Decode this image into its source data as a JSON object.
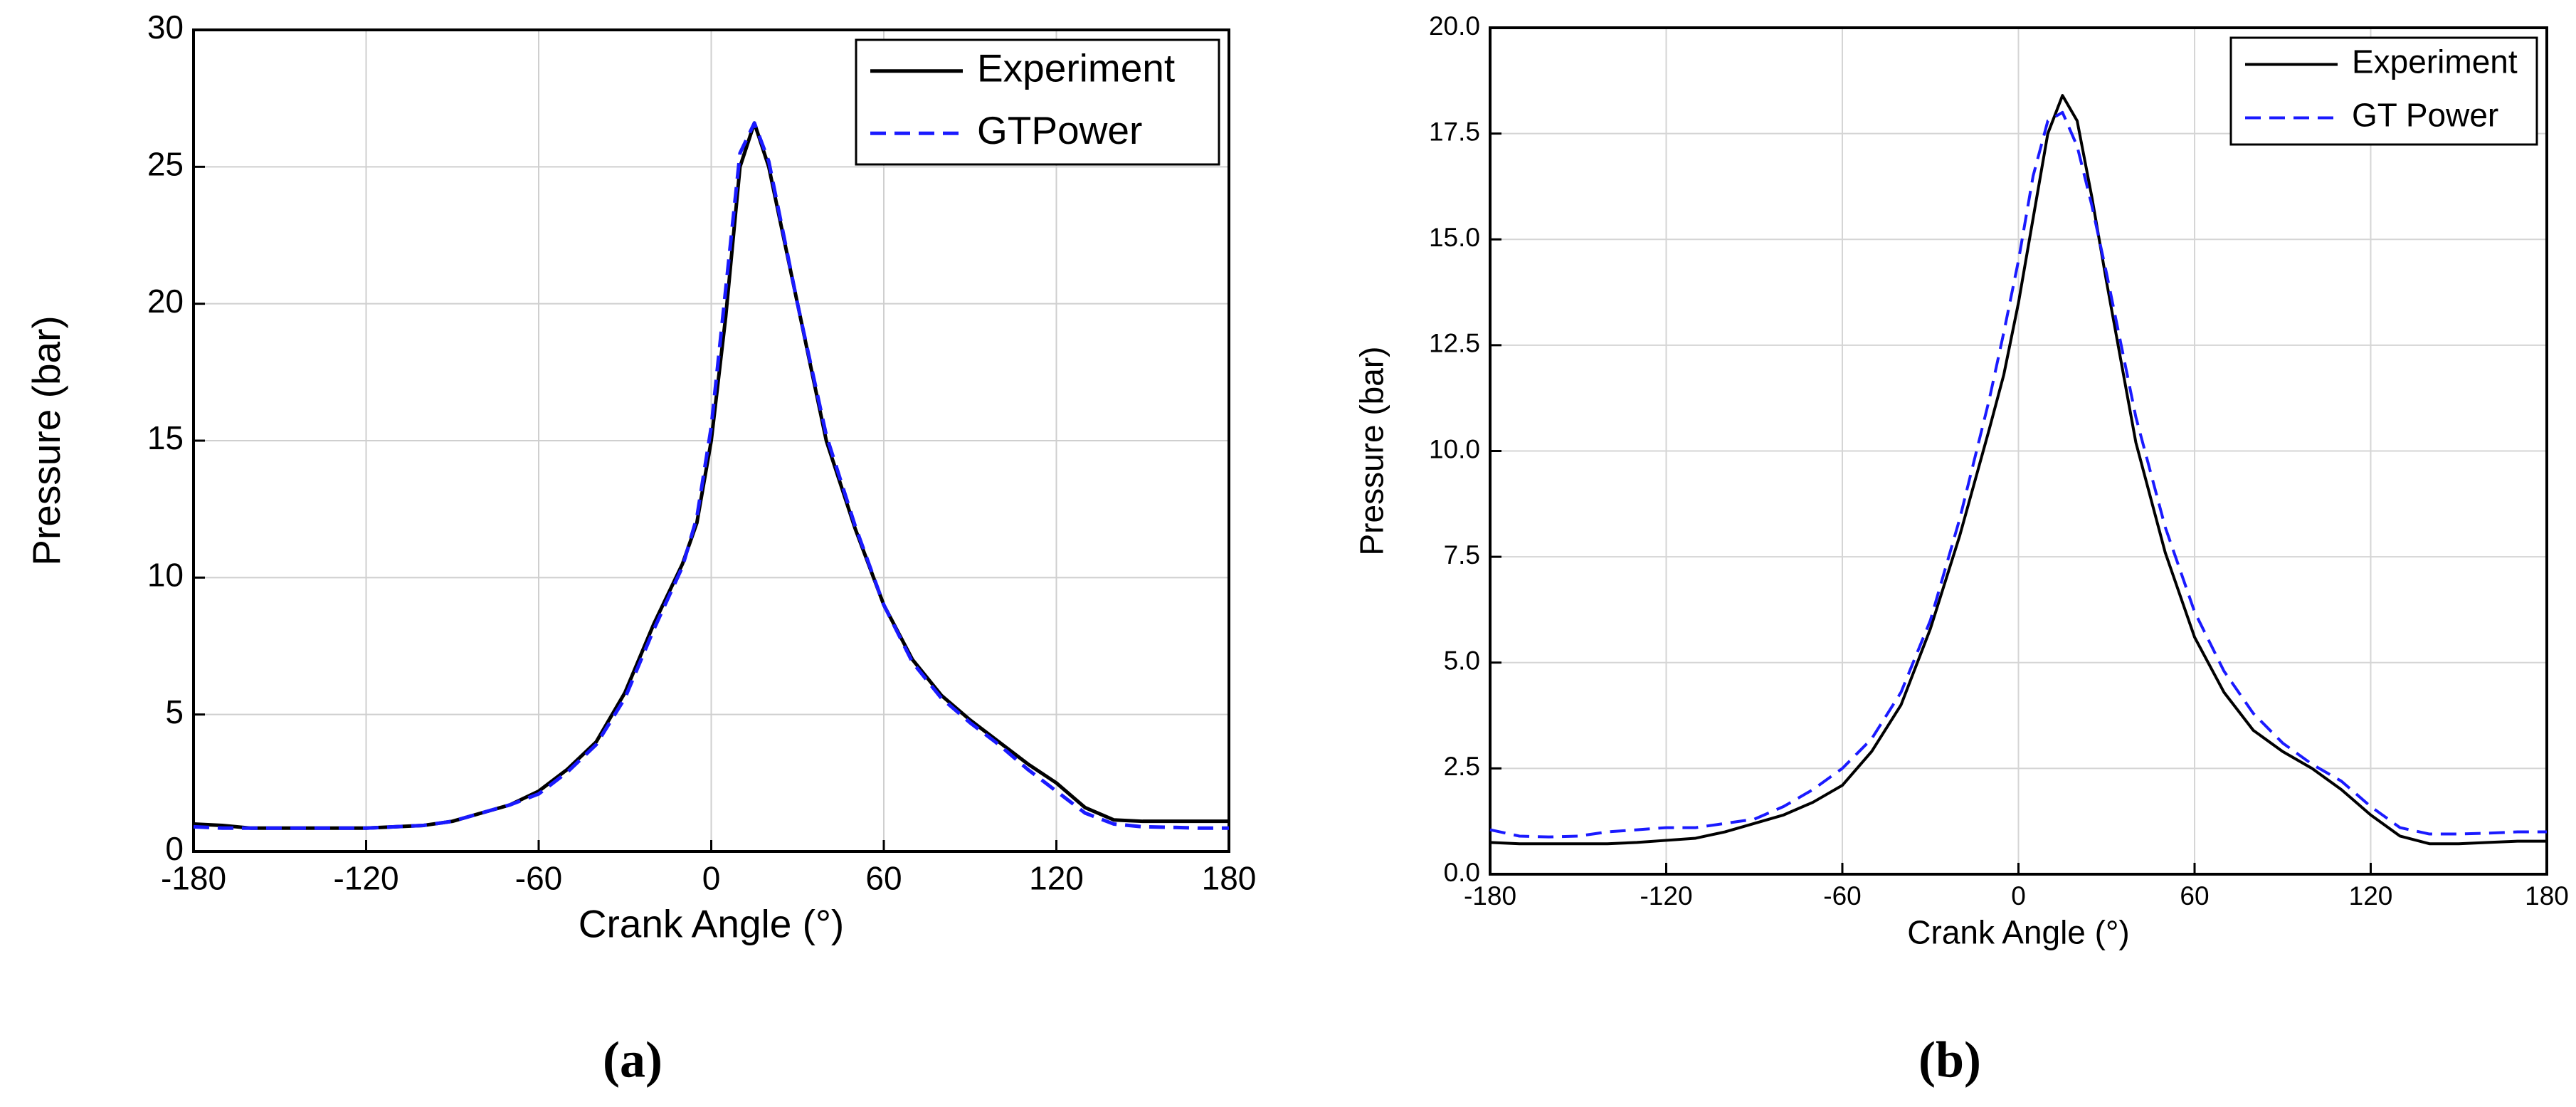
{
  "chart_data": [
    {
      "type": "line",
      "caption": "(a)",
      "xlabel": "Crank Angle (°)",
      "ylabel": "Pressure (bar)",
      "x": [
        -180,
        -170,
        -160,
        -150,
        -140,
        -130,
        -120,
        -110,
        -100,
        -90,
        -80,
        -70,
        -60,
        -50,
        -40,
        -30,
        -20,
        -10,
        -5,
        0,
        5,
        10,
        15,
        20,
        25,
        30,
        40,
        50,
        60,
        70,
        80,
        90,
        100,
        110,
        120,
        130,
        140,
        150,
        160,
        170,
        180
      ],
      "series": [
        {
          "name": "Experiment",
          "color": "#000000",
          "dashed": false,
          "values": [
            1.0,
            0.95,
            0.85,
            0.85,
            0.85,
            0.85,
            0.85,
            0.9,
            0.95,
            1.1,
            1.4,
            1.7,
            2.2,
            3.0,
            4.0,
            5.8,
            8.3,
            10.5,
            12,
            15,
            19.5,
            25,
            26.6,
            25,
            22.5,
            20,
            15,
            11.8,
            9,
            7,
            5.7,
            4.8,
            4,
            3.2,
            2.5,
            1.6,
            1.15,
            1.1,
            1.1,
            1.1,
            1.1
          ]
        },
        {
          "name": "GTPower",
          "color": "#1a1aff",
          "dashed": true,
          "values": [
            0.9,
            0.85,
            0.85,
            0.85,
            0.85,
            0.85,
            0.85,
            0.9,
            0.95,
            1.1,
            1.4,
            1.7,
            2.1,
            2.9,
            3.9,
            5.6,
            8.1,
            10.4,
            12.2,
            15.5,
            20.5,
            25.5,
            26.6,
            25.2,
            22.6,
            20,
            15.2,
            11.9,
            9,
            6.9,
            5.6,
            4.7,
            3.9,
            3.0,
            2.2,
            1.4,
            1.0,
            0.9,
            0.88,
            0.85,
            0.85
          ]
        }
      ],
      "xlim": [
        -180,
        180
      ],
      "xticks": [
        -180,
        -120,
        -60,
        0,
        60,
        120,
        180
      ],
      "ylim": [
        0,
        30
      ],
      "yticks": [
        0,
        5,
        10,
        15,
        20,
        25,
        30
      ],
      "grid": true,
      "legend": "upper-right"
    },
    {
      "type": "line",
      "caption": "(b)",
      "xlabel": "Crank Angle (°)",
      "ylabel": "Pressure (bar)",
      "x": [
        -180,
        -170,
        -160,
        -150,
        -140,
        -130,
        -120,
        -110,
        -100,
        -90,
        -80,
        -70,
        -60,
        -50,
        -40,
        -30,
        -20,
        -10,
        -5,
        0,
        5,
        10,
        15,
        20,
        25,
        30,
        40,
        50,
        60,
        70,
        80,
        90,
        100,
        110,
        120,
        130,
        140,
        150,
        160,
        170,
        180
      ],
      "series": [
        {
          "name": "Experiment",
          "color": "#000000",
          "dashed": false,
          "values": [
            0.75,
            0.72,
            0.72,
            0.72,
            0.72,
            0.75,
            0.8,
            0.85,
            1.0,
            1.2,
            1.4,
            1.7,
            2.1,
            2.9,
            4.0,
            5.8,
            8.0,
            10.5,
            11.8,
            13.5,
            15.5,
            17.5,
            18.4,
            17.8,
            16.0,
            14.0,
            10.2,
            7.6,
            5.6,
            4.3,
            3.4,
            2.9,
            2.5,
            2.0,
            1.4,
            0.9,
            0.72,
            0.72,
            0.75,
            0.78,
            0.78
          ]
        },
        {
          "name": "GT Power",
          "color": "#1a1aff",
          "dashed": true,
          "values": [
            1.05,
            0.9,
            0.88,
            0.9,
            1.0,
            1.05,
            1.1,
            1.1,
            1.2,
            1.3,
            1.6,
            2.0,
            2.5,
            3.2,
            4.3,
            6.0,
            8.4,
            11.2,
            12.8,
            14.5,
            16.5,
            17.8,
            18.0,
            17.2,
            15.8,
            14.2,
            10.8,
            8.2,
            6.2,
            4.8,
            3.8,
            3.1,
            2.6,
            2.2,
            1.6,
            1.1,
            0.95,
            0.95,
            0.97,
            1.0,
            1.0
          ]
        }
      ],
      "xlim": [
        -180,
        180
      ],
      "xticks": [
        -180,
        -120,
        -60,
        0,
        60,
        120,
        180
      ],
      "ylim": [
        0,
        20
      ],
      "yticks": [
        {
          "value": 0,
          "label": "0.0"
        },
        2.5,
        {
          "value": 5,
          "label": "5.0"
        },
        7.5,
        {
          "value": 10,
          "label": "10.0"
        },
        12.5,
        {
          "value": 15,
          "label": "15.0"
        },
        17.5,
        {
          "value": 20,
          "label": "20.0"
        }
      ],
      "grid": true,
      "legend": "upper-right"
    }
  ]
}
